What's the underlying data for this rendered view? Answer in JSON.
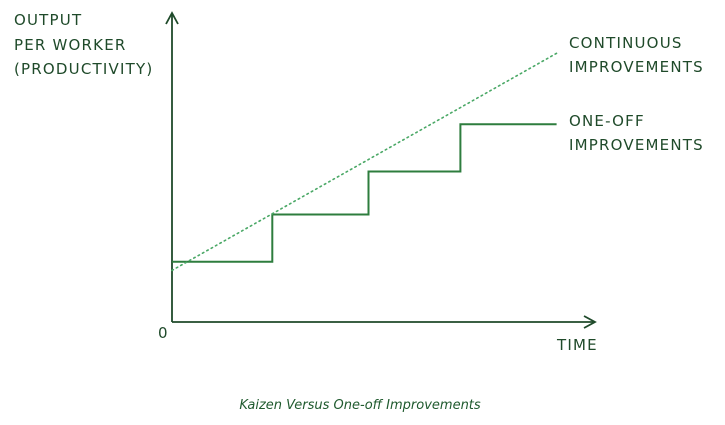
{
  "colors": {
    "ink": "#1f4a2a",
    "line": "#2e7d3e",
    "dotted": "#4aa866",
    "caption": "#1f5a2e"
  },
  "chart_data": {
    "type": "line",
    "caption": "Kaizen Versus One-off Improvements",
    "ylabel_lines": [
      "OUTPUT",
      "PER WORKER",
      "(PRODUCTIVITY)"
    ],
    "xlabel": "TIME",
    "origin_label": "0",
    "grid": false,
    "axis_arrows": true,
    "series": [
      {
        "name_lines": [
          "ONE-OFF",
          "IMPROVEMENTS"
        ],
        "style": "solid-step",
        "points": [
          [
            0,
            28
          ],
          [
            24,
            28
          ],
          [
            24,
            50
          ],
          [
            47,
            50
          ],
          [
            47,
            70
          ],
          [
            69,
            70
          ],
          [
            69,
            92
          ],
          [
            92,
            92
          ]
        ]
      },
      {
        "name_lines": [
          "CONTINUOUS",
          "IMPROVEMENTS"
        ],
        "style": "dotted",
        "points": [
          [
            0,
            24
          ],
          [
            92,
            125
          ]
        ]
      }
    ],
    "xlim": [
      0,
      100
    ],
    "ylim": [
      0,
      140
    ]
  }
}
